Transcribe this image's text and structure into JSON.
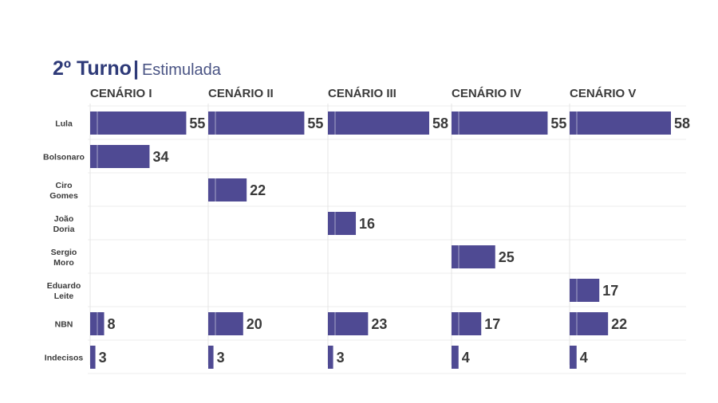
{
  "header": {
    "title": "2º Turno",
    "separator": "|",
    "subtitle": "Estimulada"
  },
  "colors": {
    "bar": "#4f4a93",
    "title": "#2e3a78",
    "text": "#3a3a3a"
  },
  "chart_data": {
    "type": "bar",
    "orientation": "horizontal",
    "title": "2º Turno | Estimulada",
    "categories": [
      "Lula",
      "Bolsonaro",
      "Ciro Gomes",
      "João Doria",
      "Sergio Moro",
      "Eduardo Leite",
      "NBN",
      "Indecisos"
    ],
    "category_lines": [
      [
        "Lula"
      ],
      [
        "Bolsonaro"
      ],
      [
        "Ciro",
        "Gomes"
      ],
      [
        "João",
        "Doria"
      ],
      [
        "Sergio",
        "Moro"
      ],
      [
        "Eduardo",
        "Leite"
      ],
      [
        "NBN"
      ],
      [
        "Indecisos"
      ]
    ],
    "panels": [
      {
        "name": "CENÁRIO I",
        "values": [
          55,
          34,
          null,
          null,
          null,
          null,
          8,
          3
        ]
      },
      {
        "name": "CENÁRIO II",
        "values": [
          55,
          null,
          22,
          null,
          null,
          null,
          20,
          3
        ]
      },
      {
        "name": "CENÁRIO III",
        "values": [
          58,
          null,
          null,
          16,
          null,
          null,
          23,
          3
        ]
      },
      {
        "name": "CENÁRIO IV",
        "values": [
          55,
          null,
          null,
          null,
          25,
          null,
          17,
          4
        ]
      },
      {
        "name": "CENÁRIO V",
        "values": [
          58,
          null,
          null,
          null,
          null,
          17,
          22,
          4
        ]
      }
    ],
    "xlim": [
      0,
      60
    ],
    "grid": true,
    "data_labels": true
  }
}
